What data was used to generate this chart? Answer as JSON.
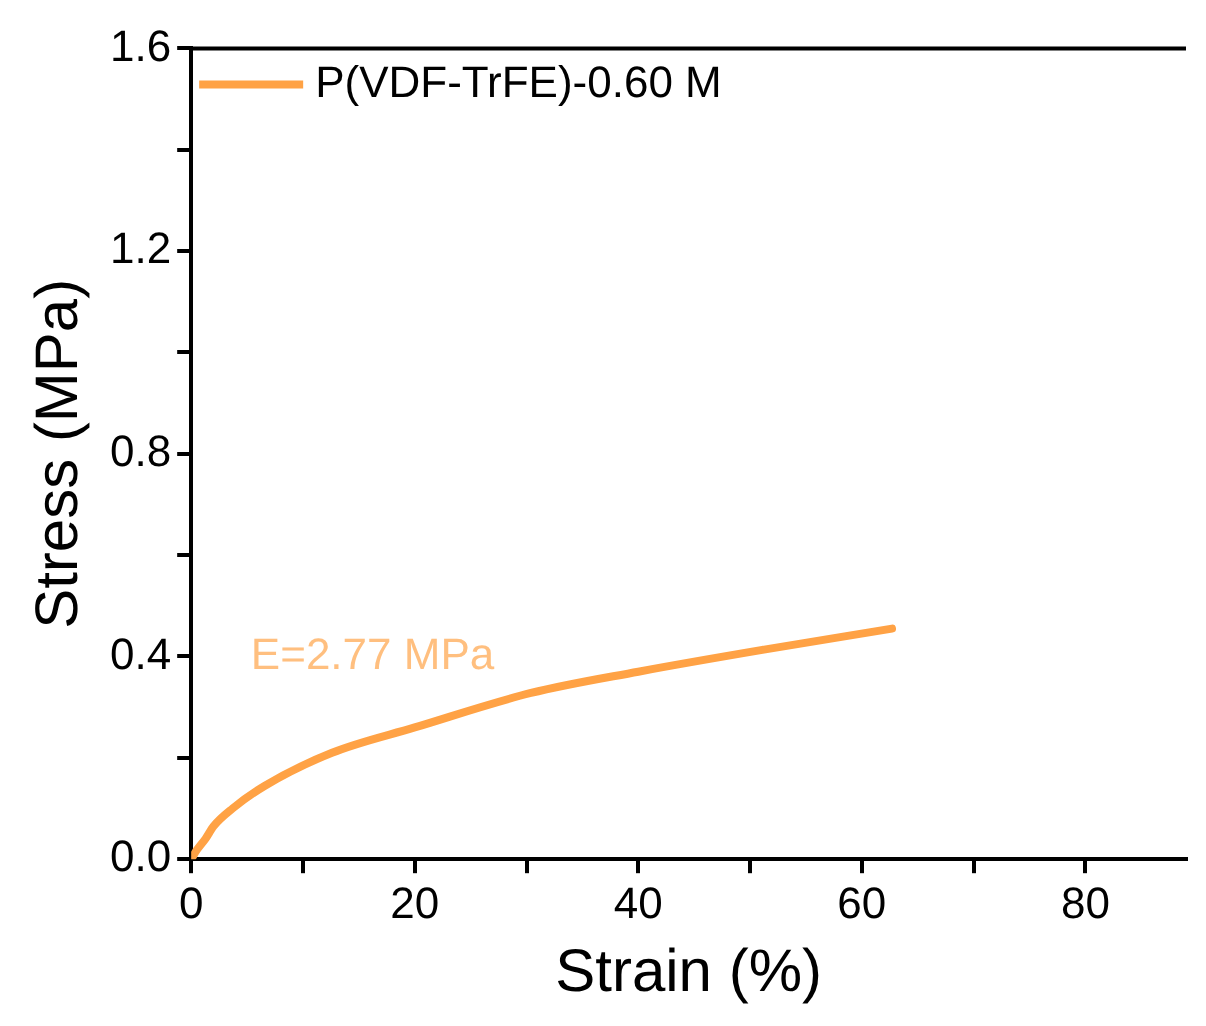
{
  "chart_data": {
    "type": "line",
    "xlabel": "Strain (%)",
    "ylabel": "Stress (MPa)",
    "xlim": [
      0,
      89
    ],
    "xticks": [
      0,
      {
        "value": 10,
        "label": null
      },
      20,
      {
        "value": 30,
        "label": null
      },
      40,
      {
        "value": 50,
        "label": null
      },
      60,
      {
        "value": 70,
        "label": null
      },
      80
    ],
    "ylim": [
      0,
      1.6
    ],
    "yticks": [
      {
        "value": 0,
        "label": "0.0"
      },
      {
        "value": 0.2,
        "label": null
      },
      0.4,
      {
        "value": 0.6,
        "label": null
      },
      0.8,
      {
        "value": 1.0,
        "label": null
      },
      1.2,
      {
        "value": 1.4,
        "label": null
      },
      1.6
    ],
    "series": [
      {
        "name": "P(VDF-TrFE)-0.60 M",
        "color": "#ffa245",
        "x": [
          0,
          0.5,
          1.3,
          2,
          3.7,
          6.6,
          12.6,
          20,
          30.4,
          40,
          51.1,
          62.7
        ],
        "values": [
          0,
          0.018,
          0.041,
          0.065,
          0.1,
          0.145,
          0.21,
          0.26,
          0.328,
          0.37,
          0.413,
          0.455
        ]
      }
    ],
    "annotations": [
      "E=2.77 MPa"
    ],
    "grid": false,
    "legend": "top left",
    "marker": "none",
    "line_style": "solid"
  }
}
